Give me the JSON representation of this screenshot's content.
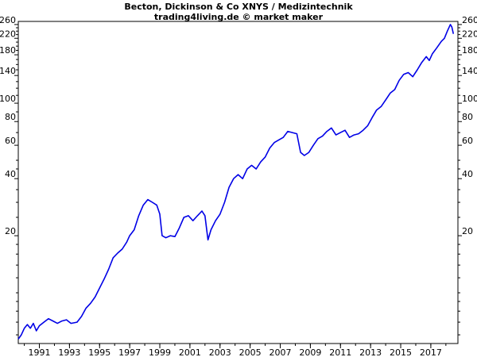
{
  "chart_data": {
    "type": "line",
    "title": "Becton, Dickinson & Co XNYS / Medizintechnik",
    "subtitle": "trading4living.de © market maker",
    "xlabel": "",
    "ylabel": "",
    "y_scale": "log",
    "ylim": [
      5.4,
      270
    ],
    "xlim": [
      1989.6,
      2018.8
    ],
    "grid": false,
    "legend": "none",
    "line_color": "#0000e6",
    "x_ticks": [
      {
        "value": 1991,
        "label": "1991"
      },
      {
        "value": 1993,
        "label": "1993"
      },
      {
        "value": 1995,
        "label": "1995"
      },
      {
        "value": 1997,
        "label": "1997"
      },
      {
        "value": 1999,
        "label": "1999"
      },
      {
        "value": 2001,
        "label": "2001"
      },
      {
        "value": 2003,
        "label": "2003"
      },
      {
        "value": 2005,
        "label": "2005"
      },
      {
        "value": 2007,
        "label": "2007"
      },
      {
        "value": 2009,
        "label": "2009"
      },
      {
        "value": 2011,
        "label": "2011"
      },
      {
        "value": 2013,
        "label": "2013"
      },
      {
        "value": 2015,
        "label": "2015"
      },
      {
        "value": 2017,
        "label": "2017"
      }
    ],
    "y_ticks": [
      {
        "value": 20,
        "label": "20"
      },
      {
        "value": 40,
        "label": "40"
      },
      {
        "value": 60,
        "label": "60"
      },
      {
        "value": 80,
        "label": "80"
      },
      {
        "value": 100,
        "label": "100"
      },
      {
        "value": 140,
        "label": "140"
      },
      {
        "value": 180,
        "label": "180"
      },
      {
        "value": 220,
        "label": "220"
      },
      {
        "value": 260,
        "label": "260"
      }
    ],
    "series": [
      {
        "values": [
          {
            "x": 1989.6,
            "y": 5.7
          },
          {
            "x": 1989.8,
            "y": 6.0
          },
          {
            "x": 1990.0,
            "y": 6.5
          },
          {
            "x": 1990.2,
            "y": 6.8
          },
          {
            "x": 1990.4,
            "y": 6.5
          },
          {
            "x": 1990.6,
            "y": 6.9
          },
          {
            "x": 1990.8,
            "y": 6.3
          },
          {
            "x": 1991.0,
            "y": 6.7
          },
          {
            "x": 1991.3,
            "y": 7.0
          },
          {
            "x": 1991.6,
            "y": 7.3
          },
          {
            "x": 1991.9,
            "y": 7.1
          },
          {
            "x": 1992.2,
            "y": 6.9
          },
          {
            "x": 1992.5,
            "y": 7.1
          },
          {
            "x": 1992.8,
            "y": 7.2
          },
          {
            "x": 1993.1,
            "y": 6.9
          },
          {
            "x": 1993.5,
            "y": 7.0
          },
          {
            "x": 1993.8,
            "y": 7.5
          },
          {
            "x": 1994.1,
            "y": 8.3
          },
          {
            "x": 1994.4,
            "y": 8.8
          },
          {
            "x": 1994.7,
            "y": 9.5
          },
          {
            "x": 1995.0,
            "y": 10.6
          },
          {
            "x": 1995.3,
            "y": 11.8
          },
          {
            "x": 1995.6,
            "y": 13.3
          },
          {
            "x": 1995.9,
            "y": 15.3
          },
          {
            "x": 1996.2,
            "y": 16.2
          },
          {
            "x": 1996.5,
            "y": 17.0
          },
          {
            "x": 1996.8,
            "y": 18.5
          },
          {
            "x": 1997.0,
            "y": 20.0
          },
          {
            "x": 1997.3,
            "y": 21.5
          },
          {
            "x": 1997.6,
            "y": 25.5
          },
          {
            "x": 1997.9,
            "y": 29.0
          },
          {
            "x": 1998.2,
            "y": 31.0
          },
          {
            "x": 1998.5,
            "y": 30.0
          },
          {
            "x": 1998.8,
            "y": 29.0
          },
          {
            "x": 1999.0,
            "y": 26.0
          },
          {
            "x": 1999.15,
            "y": 20.0
          },
          {
            "x": 1999.4,
            "y": 19.5
          },
          {
            "x": 1999.7,
            "y": 20.0
          },
          {
            "x": 2000.0,
            "y": 19.8
          },
          {
            "x": 2000.3,
            "y": 22.0
          },
          {
            "x": 2000.6,
            "y": 25.0
          },
          {
            "x": 2000.9,
            "y": 25.5
          },
          {
            "x": 2001.2,
            "y": 24.0
          },
          {
            "x": 2001.5,
            "y": 25.5
          },
          {
            "x": 2001.8,
            "y": 27.0
          },
          {
            "x": 2002.0,
            "y": 25.5
          },
          {
            "x": 2002.2,
            "y": 19.0
          },
          {
            "x": 2002.4,
            "y": 21.5
          },
          {
            "x": 2002.7,
            "y": 24.0
          },
          {
            "x": 2003.0,
            "y": 26.0
          },
          {
            "x": 2003.3,
            "y": 30.0
          },
          {
            "x": 2003.6,
            "y": 36.0
          },
          {
            "x": 2003.9,
            "y": 40.0
          },
          {
            "x": 2004.2,
            "y": 42.0
          },
          {
            "x": 2004.5,
            "y": 40.0
          },
          {
            "x": 2004.8,
            "y": 45.0
          },
          {
            "x": 2005.1,
            "y": 47.0
          },
          {
            "x": 2005.4,
            "y": 45.0
          },
          {
            "x": 2005.7,
            "y": 49.0
          },
          {
            "x": 2006.0,
            "y": 52.0
          },
          {
            "x": 2006.3,
            "y": 58.0
          },
          {
            "x": 2006.6,
            "y": 62.0
          },
          {
            "x": 2006.9,
            "y": 64.0
          },
          {
            "x": 2007.2,
            "y": 66.0
          },
          {
            "x": 2007.5,
            "y": 71.0
          },
          {
            "x": 2007.8,
            "y": 70.0
          },
          {
            "x": 2008.1,
            "y": 69.0
          },
          {
            "x": 2008.35,
            "y": 55.0
          },
          {
            "x": 2008.6,
            "y": 53.0
          },
          {
            "x": 2008.9,
            "y": 55.0
          },
          {
            "x": 2009.2,
            "y": 60.0
          },
          {
            "x": 2009.5,
            "y": 65.0
          },
          {
            "x": 2009.8,
            "y": 67.0
          },
          {
            "x": 2010.1,
            "y": 71.0
          },
          {
            "x": 2010.4,
            "y": 74.0
          },
          {
            "x": 2010.7,
            "y": 68.0
          },
          {
            "x": 2011.0,
            "y": 70.0
          },
          {
            "x": 2011.3,
            "y": 72.0
          },
          {
            "x": 2011.6,
            "y": 66.0
          },
          {
            "x": 2011.9,
            "y": 68.0
          },
          {
            "x": 2012.2,
            "y": 69.0
          },
          {
            "x": 2012.5,
            "y": 72.0
          },
          {
            "x": 2012.8,
            "y": 76.0
          },
          {
            "x": 2013.1,
            "y": 84.0
          },
          {
            "x": 2013.4,
            "y": 92.0
          },
          {
            "x": 2013.7,
            "y": 96.0
          },
          {
            "x": 2014.0,
            "y": 104.0
          },
          {
            "x": 2014.3,
            "y": 113.0
          },
          {
            "x": 2014.6,
            "y": 118.0
          },
          {
            "x": 2014.9,
            "y": 132.0
          },
          {
            "x": 2015.2,
            "y": 142.0
          },
          {
            "x": 2015.5,
            "y": 145.0
          },
          {
            "x": 2015.8,
            "y": 138.0
          },
          {
            "x": 2016.1,
            "y": 150.0
          },
          {
            "x": 2016.4,
            "y": 164.0
          },
          {
            "x": 2016.7,
            "y": 176.0
          },
          {
            "x": 2016.9,
            "y": 168.0
          },
          {
            "x": 2017.1,
            "y": 182.0
          },
          {
            "x": 2017.4,
            "y": 196.0
          },
          {
            "x": 2017.7,
            "y": 212.0
          },
          {
            "x": 2017.9,
            "y": 220.0
          },
          {
            "x": 2018.1,
            "y": 240.0
          },
          {
            "x": 2018.3,
            "y": 260.0
          },
          {
            "x": 2018.4,
            "y": 252.0
          },
          {
            "x": 2018.5,
            "y": 232.0
          }
        ]
      }
    ]
  }
}
